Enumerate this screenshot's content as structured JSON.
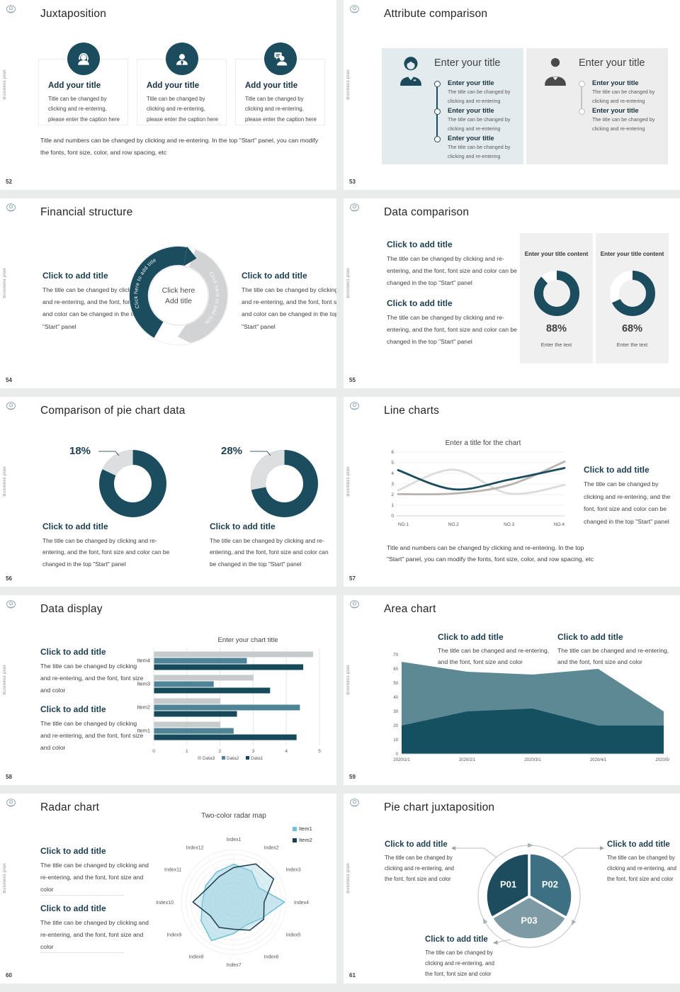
{
  "common": {
    "side_label": "Business plan",
    "accent_dark": "#1b4d5e",
    "accent_mid": "#4f8496",
    "accent_light": "#7d9aa5",
    "remainder_gray": "#dcdee0"
  },
  "slides": {
    "s52": {
      "title": "Juxtaposition",
      "page": "52",
      "cards": [
        {
          "title": "Add your title",
          "caption": "Title can be changed by clicking and re-entering, please enter the caption here"
        },
        {
          "title": "Add your title",
          "caption": "Title can be changed by clicking and re-entering, please enter the caption here"
        },
        {
          "title": "Add your title",
          "caption": "Title can be changed by clicking and re-entering, please enter the caption here"
        }
      ],
      "footnote_line1": "Title and numbers can be changed by clicking and re-entering. In the top \"Start\" panel, you can modify",
      "footnote_line2": "the fonts, font size, color, and row spacing, etc"
    },
    "s53": {
      "title": "Attribute comparison",
      "page": "53",
      "left_panel": {
        "heading": "Enter your title",
        "items": [
          {
            "title": "Enter your title",
            "caption": "The title can be changed by clicking and re-entering"
          },
          {
            "title": "Enter your title",
            "caption": "The title can be changed by clicking and re-entering"
          },
          {
            "title": "Enter your title",
            "caption": "The title can be changed by clicking and re-entering"
          }
        ]
      },
      "right_panel": {
        "heading": "Enter your title",
        "items": [
          {
            "title": "Enter your title",
            "caption": "The title can be changed by clicking and re-entering"
          },
          {
            "title": "Enter your title",
            "caption": "The title can be changed by clicking and re-entering"
          }
        ]
      }
    },
    "s54": {
      "title": "Financial structure",
      "page": "54",
      "left_block": {
        "heading": "Click to add title",
        "caption": "The title can be changed by clicking and re-entering, and the font, font size and color can be changed in the top \"Start\" panel"
      },
      "right_block": {
        "heading": "Click to add title",
        "caption": "The title can be changed by clicking and re-entering, and the font, font size and color can be changed in the top \"Start\" panel"
      },
      "arc_label_left": "Click here to add title",
      "arc_label_right": "Click here to add title",
      "center_line1": "Click here",
      "center_line2": "Add title"
    },
    "s55": {
      "title": "Data comparison",
      "page": "55",
      "blocks": [
        {
          "heading": "Click to add title",
          "caption": "The title can be changed by clicking and re-entering, and the font, font size and color can be changed in the top \"Start\" panel"
        },
        {
          "heading": "Click to add title",
          "caption": "The title can be changed by clicking and re-entering, and the font, font size and color can be changed in the top \"Start\" panel"
        }
      ],
      "cards": [
        {
          "heading": "Enter your title content",
          "value": "88%",
          "caption": "Enter the text"
        },
        {
          "heading": "Enter your title content",
          "value": "68%",
          "caption": "Enter the text"
        }
      ]
    },
    "s56": {
      "title": "Comparison of pie chart data",
      "page": "56",
      "left": {
        "label": "18%",
        "heading": "Click to add title",
        "caption": "The title can be changed by clicking and re-entering, and the font, font size and color can be changed in the top \"Start\" panel"
      },
      "right": {
        "label": "28%",
        "heading": "Click to add title",
        "caption": "The title can be changed by clicking and re-entering, and the font, font size and color can be changed in the top \"Start\" panel"
      }
    },
    "s57": {
      "title": "Line charts",
      "page": "57",
      "block": {
        "heading": "Click to add title",
        "caption": "The title can be changed by clicking and re-entering, and the font, font size and color can be changed in the top \"Start\" panel"
      },
      "footnote_line1": "Title and numbers can be changed by clicking and re-entering. In the top",
      "footnote_line2": "\"Start\" panel, you can modify the fonts, font size, color, and row spacing, etc"
    },
    "s58": {
      "title": "Data display",
      "page": "58",
      "blocks": [
        {
          "heading": "Click to add title",
          "caption": "The title can be changed by clicking and re-entering, and the font, font size and color"
        },
        {
          "heading": "Click to add title",
          "caption": "The title can be changed by clicking and re-entering, and the font, font size and color"
        }
      ]
    },
    "s59": {
      "title": "Area chart",
      "page": "59",
      "blocks": [
        {
          "heading": "Click to add title",
          "caption": "The title can be changed and re-entering, and the font, font size and color"
        },
        {
          "heading": "Click to add title",
          "caption": "The title can be changed and re-entering, and the font, font size and color"
        }
      ]
    },
    "s60": {
      "title": "Radar chart",
      "page": "60",
      "blocks": [
        {
          "heading": "Click to add title",
          "caption": "The title can be changed by clicking and re-entering, and the font, font size and color"
        },
        {
          "heading": "Click to add title",
          "caption": "The title can be changed by clicking and re-entering, and the font, font size and color"
        }
      ]
    },
    "s61": {
      "title": "Pie chart juxtaposition",
      "page": "61",
      "blocks": [
        {
          "heading": "Click to add title",
          "caption": "The title can be changed by clicking and re-entering, and the font, font size and color"
        },
        {
          "heading": "Click to add title",
          "caption": "The title can be changed by clicking and re-entering, and the font, font size and color"
        },
        {
          "heading": "Click to add title",
          "caption": "The title can be changed by clicking and re-entering, and the font, font size and color"
        }
      ]
    }
  },
  "chart_data": [
    {
      "id": "donut88",
      "type": "donut",
      "label": "88%",
      "percent": 88,
      "arc_color": "#1b4d5e",
      "rest_color": "#ffffff",
      "rotate": -90,
      "stroke": 13
    },
    {
      "id": "donut68",
      "type": "donut",
      "label": "68%",
      "percent": 68,
      "arc_color": "#1b4d5e",
      "rest_color": "#ffffff",
      "rotate": -90,
      "stroke": 13
    },
    {
      "id": "donut18",
      "type": "donut",
      "label": "18%",
      "percent": 18,
      "arc_color": "#dcdee0",
      "rest_color": "#1b4d5e",
      "rotate": -154.8,
      "stroke": 21
    },
    {
      "id": "donut28",
      "type": "donut",
      "label": "28%",
      "percent": 28,
      "arc_color": "#dcdee0",
      "rest_color": "#1b4d5e",
      "rotate": -190.8,
      "stroke": 21
    },
    {
      "id": "line57",
      "type": "line",
      "title": "Enter a title for the chart",
      "x_labels": [
        "NO.1",
        "NO.2",
        "NO.3",
        "NO.4"
      ],
      "ylim": [
        0,
        6
      ],
      "yticks": [
        0,
        1,
        2,
        3,
        4,
        5,
        6
      ],
      "series": [
        {
          "name": "series-light",
          "color": "#dcdcdc",
          "values": [
            2.4,
            4.35,
            2.1,
            2.9
          ]
        },
        {
          "name": "series-gray",
          "color": "#b8b4b0",
          "values": [
            2.05,
            2.1,
            2.9,
            5.1
          ]
        },
        {
          "name": "series-dark",
          "color": "#1b4d5e",
          "values": [
            4.3,
            2.5,
            3.4,
            4.5
          ]
        }
      ],
      "grid": true,
      "legend": "none"
    },
    {
      "id": "bar58",
      "type": "hbar",
      "title": "Enter your chart title",
      "categories": [
        "Item1",
        "Item2",
        "Item3",
        "Item4"
      ],
      "xlim": [
        0,
        5
      ],
      "xticks": [
        0,
        1,
        2,
        3,
        4,
        5
      ],
      "series": [
        {
          "name": "Data1",
          "color": "#16495a",
          "values": [
            4.3,
            2.5,
            3.5,
            4.5
          ]
        },
        {
          "name": "Data2",
          "color": "#4f8496",
          "values": [
            2.4,
            4.4,
            1.8,
            2.8
          ]
        },
        {
          "name": "Data3",
          "color": "#c8cbcc",
          "values": [
            2.0,
            2.0,
            3.0,
            4.8
          ]
        }
      ],
      "legend_order": [
        "Data3",
        "Data2",
        "Data1"
      ],
      "legend_position": "bottom"
    },
    {
      "id": "area59",
      "type": "area",
      "x_labels": [
        "2020/1/1",
        "2020/2/1",
        "2020/3/1",
        "2020/4/1",
        "2020/5/1"
      ],
      "ylim": [
        0,
        70
      ],
      "yticks": [
        0,
        10,
        20,
        30,
        40,
        50,
        60,
        70
      ],
      "series": [
        {
          "name": "series-back",
          "color": "#5d8995",
          "values": [
            65,
            58,
            56,
            60,
            30
          ]
        },
        {
          "name": "series-front",
          "color": "#14505f",
          "values": [
            20,
            30,
            32,
            20,
            20
          ]
        }
      ]
    },
    {
      "id": "radar60",
      "type": "radar",
      "title": "Two-color radar map",
      "max": 1,
      "axes": [
        "Index1",
        "Index2",
        "Index3",
        "Index4",
        "Index5",
        "Index6",
        "Index7",
        "Index8",
        "Index9",
        "Index10",
        "Index11",
        "Index12"
      ],
      "series": [
        {
          "name": "Item1",
          "stroke": "#6fc0d8",
          "fill": "rgba(150,207,224,0.50)",
          "values": [
            0.72,
            0.68,
            0.55,
            0.97,
            0.62,
            0.5,
            0.6,
            0.85,
            0.72,
            0.6,
            0.62,
            0.66
          ]
        },
        {
          "name": "Item2",
          "stroke": "#1d3c4c",
          "fill": "rgba(150,207,224,0.35)",
          "values": [
            0.66,
            0.84,
            0.88,
            0.58,
            0.66,
            0.62,
            0.52,
            0.56,
            0.52,
            0.78,
            0.56,
            0.56
          ]
        }
      ],
      "legend_position": "top-right"
    },
    {
      "id": "pie61",
      "type": "pie",
      "slices": [
        {
          "label": "P02",
          "value": 33.33,
          "color": "#3d7082",
          "start": -90,
          "end": 30
        },
        {
          "label": "P03",
          "value": 33.33,
          "color": "#7d9aa5",
          "start": 30,
          "end": 150
        },
        {
          "label": "P01",
          "value": 33.33,
          "color": "#1d4c5e",
          "start": 150,
          "end": 270
        }
      ]
    }
  ]
}
